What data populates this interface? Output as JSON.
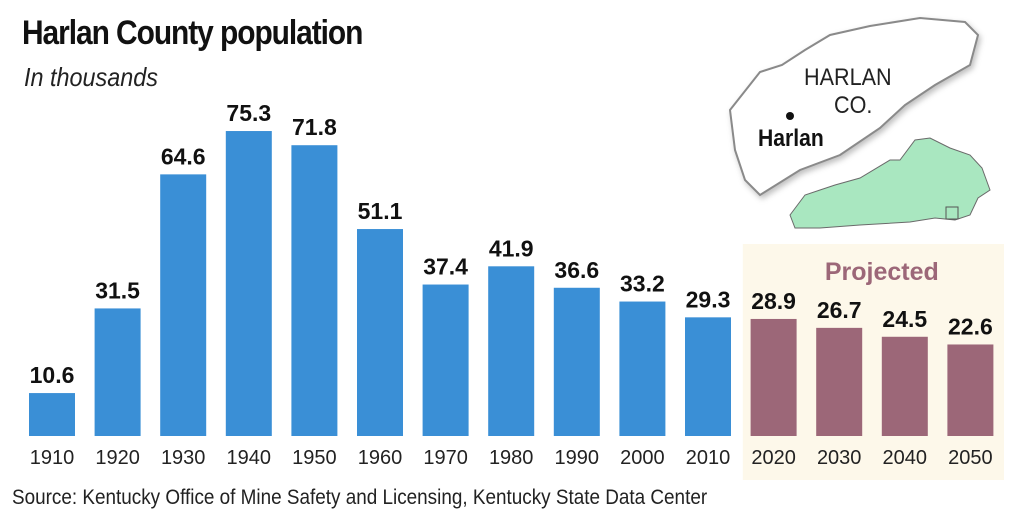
{
  "title": "Harlan County population",
  "subtitle": "In thousands",
  "source": "Source: Kentucky Office of Mine Safety and Licensing, Kentucky State Data Center",
  "map": {
    "county_label_line1": "HARLAN",
    "county_label_line2": "CO.",
    "city_label": "Harlan"
  },
  "colors": {
    "historical": "#3a8fd6",
    "projected": "#9c6778",
    "projected_bg": "#fdf8ea",
    "county_fill": "#ffffff",
    "state_fill": "#a9e7c0"
  },
  "chart_data": {
    "type": "bar",
    "categories": [
      "1910",
      "1920",
      "1930",
      "1940",
      "1950",
      "1960",
      "1970",
      "1980",
      "1990",
      "2000",
      "2010",
      "2020",
      "2030",
      "2040",
      "2050"
    ],
    "values": [
      10.6,
      31.5,
      64.6,
      75.3,
      71.8,
      51.1,
      37.4,
      41.9,
      36.6,
      33.2,
      29.3,
      28.9,
      26.7,
      24.5,
      22.6
    ],
    "projected_from": "2020",
    "projected_label": "Projected",
    "title": "Harlan County population",
    "ylabel": "In thousands",
    "ylim": [
      0,
      80
    ],
    "grid": false
  }
}
